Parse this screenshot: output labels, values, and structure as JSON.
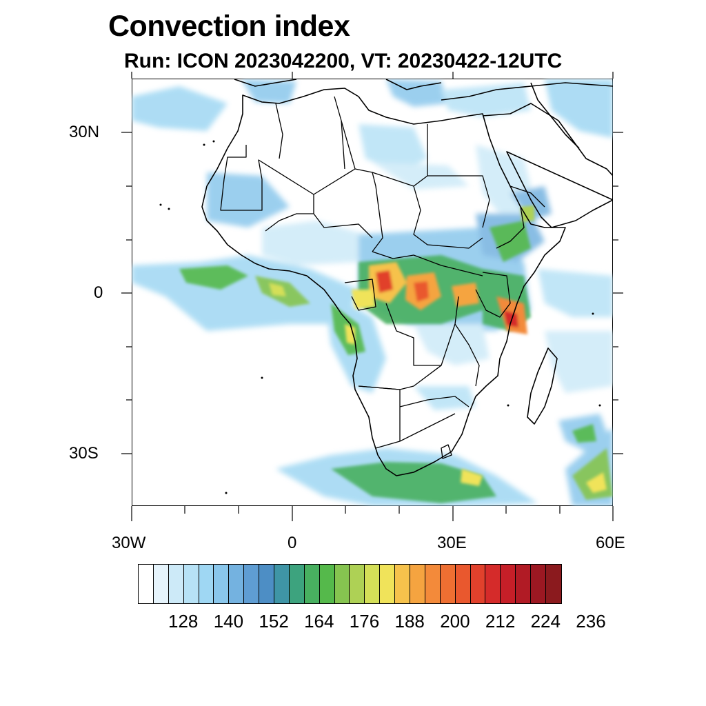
{
  "title": "Convection index",
  "subtitle": "Run: ICON 2023042200,  VT: 20230422-12UTC",
  "axes": {
    "y_labels": [
      "30N",
      "0",
      "30S"
    ],
    "x_labels": [
      "30W",
      "0",
      "30E",
      "60E"
    ]
  },
  "colorbar": {
    "colors": [
      "#ffffff",
      "#e6f4fc",
      "#cdeaf8",
      "#b7e2f6",
      "#9fd7f3",
      "#8ac7ec",
      "#74b2e0",
      "#5f9dd3",
      "#4d8ec5",
      "#3f95a6",
      "#3da37e",
      "#48b060",
      "#55b94b",
      "#86c450",
      "#aed155",
      "#d4df58",
      "#f0e35a",
      "#f6c24c",
      "#f5a440",
      "#f38a3a",
      "#ee6f32",
      "#e9582e",
      "#e1412c",
      "#d52b2a",
      "#c61f28",
      "#b11b25",
      "#9c1822",
      "#8b1a1e"
    ],
    "labels": [
      "128",
      "140",
      "152",
      "164",
      "176",
      "188",
      "200",
      "212",
      "224",
      "236"
    ]
  }
}
